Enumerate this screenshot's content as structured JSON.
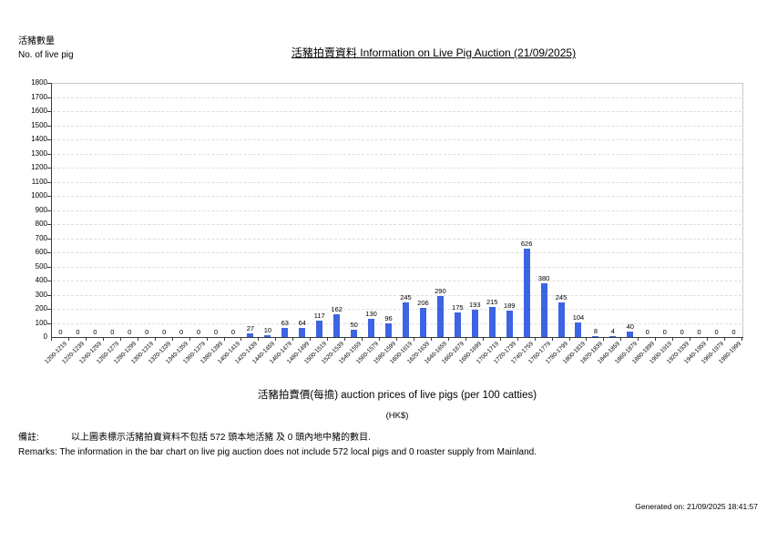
{
  "chart_data": {
    "type": "bar",
    "title": "活豬拍賣資料 Information on Live Pig Auction (21/09/2025)",
    "ylabel_zh": "活豬數量",
    "ylabel_en": "No. of live pig",
    "xlabel": "活豬拍賣價(每擔) auction prices of live pigs (per 100 catties)",
    "xlabel_unit": "(HK$)",
    "categories": [
      "1200-1219",
      "1220-1239",
      "1240-1259",
      "1260-1279",
      "1280-1299",
      "1300-1319",
      "1320-1339",
      "1340-1359",
      "1360-1379",
      "1380-1399",
      "1400-1419",
      "1420-1439",
      "1440-1459",
      "1460-1479",
      "1480-1499",
      "1500-1519",
      "1520-1539",
      "1540-1559",
      "1560-1579",
      "1580-1599",
      "1600-1619",
      "1620-1639",
      "1640-1659",
      "1660-1679",
      "1680-1699",
      "1700-1719",
      "1720-1739",
      "1740-1759",
      "1760-1779",
      "1780-1799",
      "1800-1819",
      "1820-1839",
      "1840-1859",
      "1860-1879",
      "1880-1899",
      "1900-1919",
      "1920-1939",
      "1940-1959",
      "1960-1979",
      "1980-1999"
    ],
    "values": [
      0,
      0,
      0,
      0,
      0,
      0,
      0,
      0,
      0,
      0,
      0,
      27,
      10,
      63,
      64,
      117,
      162,
      50,
      130,
      96,
      245,
      206,
      290,
      175,
      193,
      215,
      189,
      626,
      380,
      245,
      104,
      8,
      4,
      40,
      0,
      0,
      0,
      0,
      0,
      0
    ],
    "ylim": [
      0,
      1800
    ],
    "ytick_step": 100,
    "grid": "horizontal-dashed",
    "legend": "none",
    "bar_color": "#3D64E4"
  },
  "remarks": {
    "zh_label": "備註:",
    "zh": "以上圖表標示活豬拍賣資料不包括 572 頭本地活豬 及 0 頭內地中豬的數目.",
    "en": "Remarks: The information in the bar chart on live pig auction does not include 572 local pigs and 0 roaster supply from Mainland."
  },
  "generated": "Generated on: 21/09/2025 18:41:57"
}
